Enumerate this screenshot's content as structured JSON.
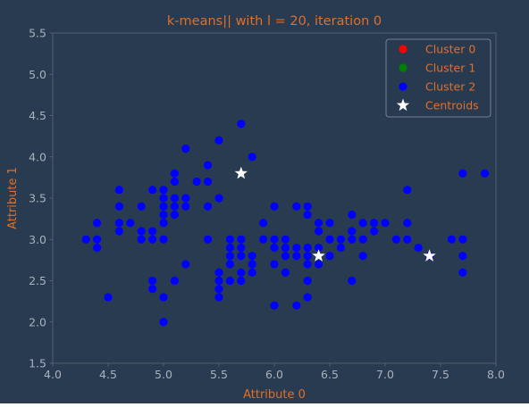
{
  "colors": {
    "background": "#283b50",
    "axes_face": "#283b50",
    "spine": "#5d6a78",
    "tick_label": "#a8b2bd",
    "title_and_axis_labels": "#e06f2a",
    "legend_text": "#e06f2a",
    "legend_face": "#283b50",
    "legend_edge": "#8a96a3",
    "cluster_0": "#ff0000",
    "cluster_1": "#008000",
    "cluster_2": "#0000ff",
    "centroids": "#ffffff"
  },
  "chart_data": {
    "type": "scatter",
    "title": "k-means|| with l = 20, iteration 0",
    "xlabel": "Attribute 0",
    "ylabel": "Attribute 1",
    "xlim": [
      4.0,
      8.0
    ],
    "ylim": [
      1.5,
      5.5
    ],
    "xticks": [
      "4.0",
      "4.5",
      "5.0",
      "5.5",
      "6.0",
      "6.5",
      "7.0",
      "7.5",
      "8.0"
    ],
    "yticks": [
      "1.5",
      "2.0",
      "2.5",
      "3.0",
      "3.5",
      "4.0",
      "4.5",
      "5.0",
      "5.5"
    ],
    "grid": false,
    "legend_position": "top-right",
    "series": [
      {
        "name": "Cluster 0",
        "marker": "circle",
        "color": "#ff0000",
        "points": []
      },
      {
        "name": "Cluster 1",
        "marker": "circle",
        "color": "#008000",
        "points": []
      },
      {
        "name": "Cluster 2",
        "marker": "circle",
        "color": "#0000ff",
        "points": [
          [
            4.3,
            3.0
          ],
          [
            4.4,
            2.9
          ],
          [
            4.4,
            3.0
          ],
          [
            4.4,
            3.2
          ],
          [
            4.5,
            2.3
          ],
          [
            4.6,
            3.1
          ],
          [
            4.6,
            3.2
          ],
          [
            4.6,
            3.4
          ],
          [
            4.6,
            3.6
          ],
          [
            4.7,
            3.2
          ],
          [
            4.8,
            3.0
          ],
          [
            4.8,
            3.1
          ],
          [
            4.8,
            3.4
          ],
          [
            4.9,
            2.4
          ],
          [
            4.9,
            2.5
          ],
          [
            4.9,
            3.0
          ],
          [
            4.9,
            3.1
          ],
          [
            4.9,
            3.6
          ],
          [
            5.0,
            2.0
          ],
          [
            5.0,
            2.3
          ],
          [
            5.0,
            3.0
          ],
          [
            5.0,
            3.2
          ],
          [
            5.0,
            3.3
          ],
          [
            5.0,
            3.4
          ],
          [
            5.0,
            3.5
          ],
          [
            5.0,
            3.6
          ],
          [
            5.1,
            2.5
          ],
          [
            5.1,
            3.3
          ],
          [
            5.1,
            3.4
          ],
          [
            5.1,
            3.5
          ],
          [
            5.1,
            3.7
          ],
          [
            5.1,
            3.8
          ],
          [
            5.2,
            2.7
          ],
          [
            5.2,
            3.4
          ],
          [
            5.2,
            3.5
          ],
          [
            5.2,
            4.1
          ],
          [
            5.3,
            3.7
          ],
          [
            5.4,
            3.0
          ],
          [
            5.4,
            3.4
          ],
          [
            5.4,
            3.7
          ],
          [
            5.4,
            3.9
          ],
          [
            5.5,
            2.3
          ],
          [
            5.5,
            2.4
          ],
          [
            5.5,
            2.5
          ],
          [
            5.5,
            2.6
          ],
          [
            5.5,
            3.5
          ],
          [
            5.5,
            4.2
          ],
          [
            5.6,
            2.5
          ],
          [
            5.6,
            2.7
          ],
          [
            5.6,
            2.8
          ],
          [
            5.6,
            2.9
          ],
          [
            5.6,
            3.0
          ],
          [
            5.7,
            2.5
          ],
          [
            5.7,
            2.6
          ],
          [
            5.7,
            2.8
          ],
          [
            5.7,
            2.9
          ],
          [
            5.7,
            3.0
          ],
          [
            5.7,
            4.4
          ],
          [
            5.8,
            2.6
          ],
          [
            5.8,
            2.7
          ],
          [
            5.8,
            2.8
          ],
          [
            5.8,
            4.0
          ],
          [
            5.9,
            3.0
          ],
          [
            5.9,
            3.2
          ],
          [
            6.0,
            2.2
          ],
          [
            6.0,
            2.7
          ],
          [
            6.0,
            2.9
          ],
          [
            6.0,
            3.0
          ],
          [
            6.0,
            3.4
          ],
          [
            6.1,
            2.6
          ],
          [
            6.1,
            2.8
          ],
          [
            6.1,
            2.9
          ],
          [
            6.1,
            3.0
          ],
          [
            6.2,
            2.2
          ],
          [
            6.2,
            2.8
          ],
          [
            6.2,
            2.9
          ],
          [
            6.2,
            3.4
          ],
          [
            6.3,
            2.3
          ],
          [
            6.3,
            2.5
          ],
          [
            6.3,
            2.7
          ],
          [
            6.3,
            2.8
          ],
          [
            6.3,
            2.9
          ],
          [
            6.3,
            3.3
          ],
          [
            6.3,
            3.4
          ],
          [
            6.4,
            2.7
          ],
          [
            6.4,
            2.9
          ],
          [
            6.4,
            3.1
          ],
          [
            6.4,
            3.2
          ],
          [
            6.5,
            2.8
          ],
          [
            6.5,
            3.0
          ],
          [
            6.5,
            3.2
          ],
          [
            6.6,
            2.9
          ],
          [
            6.6,
            3.0
          ],
          [
            6.7,
            2.5
          ],
          [
            6.7,
            3.0
          ],
          [
            6.7,
            3.1
          ],
          [
            6.7,
            3.3
          ],
          [
            6.8,
            2.8
          ],
          [
            6.8,
            3.0
          ],
          [
            6.8,
            3.2
          ],
          [
            6.9,
            3.1
          ],
          [
            6.9,
            3.2
          ],
          [
            7.0,
            3.2
          ],
          [
            7.1,
            3.0
          ],
          [
            7.2,
            3.0
          ],
          [
            7.2,
            3.2
          ],
          [
            7.2,
            3.6
          ],
          [
            7.3,
            2.9
          ],
          [
            7.4,
            2.8
          ],
          [
            7.6,
            3.0
          ],
          [
            7.7,
            2.6
          ],
          [
            7.7,
            2.8
          ],
          [
            7.7,
            3.0
          ],
          [
            7.7,
            3.8
          ],
          [
            7.9,
            3.8
          ]
        ]
      },
      {
        "name": "Centroids",
        "marker": "star",
        "color": "#ffffff",
        "points": [
          [
            5.7,
            3.8
          ],
          [
            6.4,
            2.8
          ],
          [
            7.4,
            2.8
          ]
        ]
      }
    ]
  }
}
